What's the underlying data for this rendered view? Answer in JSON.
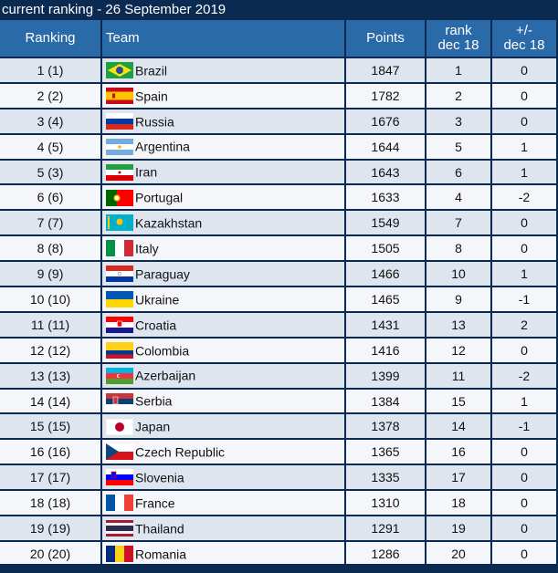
{
  "title": "current ranking - 26 September 2019",
  "headers": {
    "ranking": "Ranking",
    "team": "Team",
    "points": "Points",
    "rank_line1": "rank",
    "rank_line2": "dec 18",
    "diff_line1": "+/-",
    "diff_line2": "dec 18"
  },
  "rows": [
    {
      "ranking": "1 (1)",
      "team": "Brazil",
      "points": "1847",
      "rank": "1",
      "diff": "0",
      "flag": "flag-brazil-icon"
    },
    {
      "ranking": "2 (2)",
      "team": "Spain",
      "points": "1782",
      "rank": "2",
      "diff": "0",
      "flag": "flag-spain-icon"
    },
    {
      "ranking": "3 (4)",
      "team": "Russia",
      "points": "1676",
      "rank": "3",
      "diff": "0",
      "flag": "flag-russia-icon"
    },
    {
      "ranking": "4 (5)",
      "team": "Argentina",
      "points": "1644",
      "rank": "5",
      "diff": "1",
      "flag": "flag-argentina-icon"
    },
    {
      "ranking": "5 (3)",
      "team": "Iran",
      "points": "1643",
      "rank": "6",
      "diff": "1",
      "flag": "flag-iran-icon"
    },
    {
      "ranking": "6 (6)",
      "team": "Portugal",
      "points": "1633",
      "rank": "4",
      "diff": "-2",
      "flag": "flag-portugal-icon"
    },
    {
      "ranking": "7 (7)",
      "team": "Kazakhstan",
      "points": "1549",
      "rank": "7",
      "diff": "0",
      "flag": "flag-kazakhstan-icon"
    },
    {
      "ranking": "8 (8)",
      "team": "Italy",
      "points": "1505",
      "rank": "8",
      "diff": "0",
      "flag": "flag-italy-icon"
    },
    {
      "ranking": "9 (9)",
      "team": "Paraguay",
      "points": "1466",
      "rank": "10",
      "diff": "1",
      "flag": "flag-paraguay-icon"
    },
    {
      "ranking": "10 (10)",
      "team": "Ukraine",
      "points": "1465",
      "rank": "9",
      "diff": "-1",
      "flag": "flag-ukraine-icon"
    },
    {
      "ranking": "11 (11)",
      "team": "Croatia",
      "points": "1431",
      "rank": "13",
      "diff": "2",
      "flag": "flag-croatia-icon"
    },
    {
      "ranking": "12 (12)",
      "team": "Colombia",
      "points": "1416",
      "rank": "12",
      "diff": "0",
      "flag": "flag-colombia-icon"
    },
    {
      "ranking": "13 (13)",
      "team": "Azerbaijan",
      "points": "1399",
      "rank": "11",
      "diff": "-2",
      "flag": "flag-azerbaijan-icon"
    },
    {
      "ranking": "14 (14)",
      "team": "Serbia",
      "points": "1384",
      "rank": "15",
      "diff": "1",
      "flag": "flag-serbia-icon"
    },
    {
      "ranking": "15 (15)",
      "team": "Japan",
      "points": "1378",
      "rank": "14",
      "diff": "-1",
      "flag": "flag-japan-icon"
    },
    {
      "ranking": "16 (16)",
      "team": "Czech Republic",
      "points": "1365",
      "rank": "16",
      "diff": "0",
      "flag": "flag-czech-icon"
    },
    {
      "ranking": "17 (17)",
      "team": "Slovenia",
      "points": "1335",
      "rank": "17",
      "diff": "0",
      "flag": "flag-slovenia-icon"
    },
    {
      "ranking": "18 (18)",
      "team": "France",
      "points": "1310",
      "rank": "18",
      "diff": "0",
      "flag": "flag-france-icon"
    },
    {
      "ranking": "19 (19)",
      "team": "Thailand",
      "points": "1291",
      "rank": "19",
      "diff": "0",
      "flag": "flag-thailand-icon"
    },
    {
      "ranking": "20 (20)",
      "team": "Romania",
      "points": "1286",
      "rank": "20",
      "diff": "0",
      "flag": "flag-romania-icon"
    }
  ],
  "colors": {
    "background": "#0b2a52",
    "header": "#2a6aa8",
    "row_odd": "#dfe5ee",
    "row_even": "#f4f6f9"
  }
}
